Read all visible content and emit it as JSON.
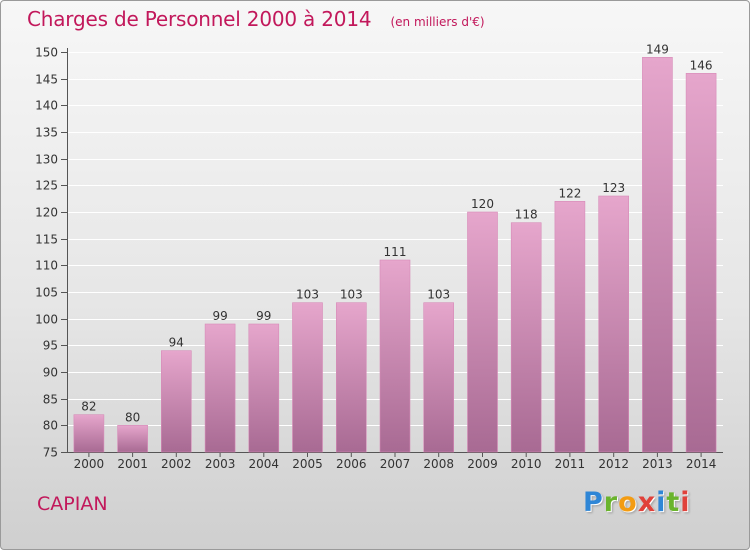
{
  "header": {
    "title": "Charges de Personnel 2000 à 2014",
    "unit": "(en milliers d'€)"
  },
  "footer": {
    "commune": "CAPIAN",
    "logo_letters": [
      "P",
      "r",
      "o",
      "x",
      "i",
      "t",
      "i"
    ],
    "logo_colors": [
      "#2f86d6",
      "#6ab42d",
      "#f39c12",
      "#e0413a",
      "#2f86d6",
      "#6ab42d",
      "#e0413a"
    ]
  },
  "colors": {
    "accent": "#c2185b",
    "bar_top": "#e6a6cc",
    "bar_bottom": "#a86a93",
    "bar_edge": "#d78bb8"
  },
  "chart_data": {
    "type": "bar",
    "title": "Charges de Personnel 2000 à 2014",
    "ylabel": "",
    "xlabel": "",
    "ylim": [
      75,
      150
    ],
    "yticks": [
      75,
      80,
      85,
      90,
      95,
      100,
      105,
      110,
      115,
      120,
      125,
      130,
      135,
      140,
      145,
      150
    ],
    "grid": true,
    "categories": [
      "2000",
      "2001",
      "2002",
      "2003",
      "2004",
      "2005",
      "2006",
      "2007",
      "2008",
      "2009",
      "2010",
      "2011",
      "2012",
      "2013",
      "2014"
    ],
    "values": [
      82,
      80,
      94,
      99,
      99,
      103,
      103,
      111,
      103,
      120,
      118,
      122,
      123,
      149,
      146
    ]
  }
}
